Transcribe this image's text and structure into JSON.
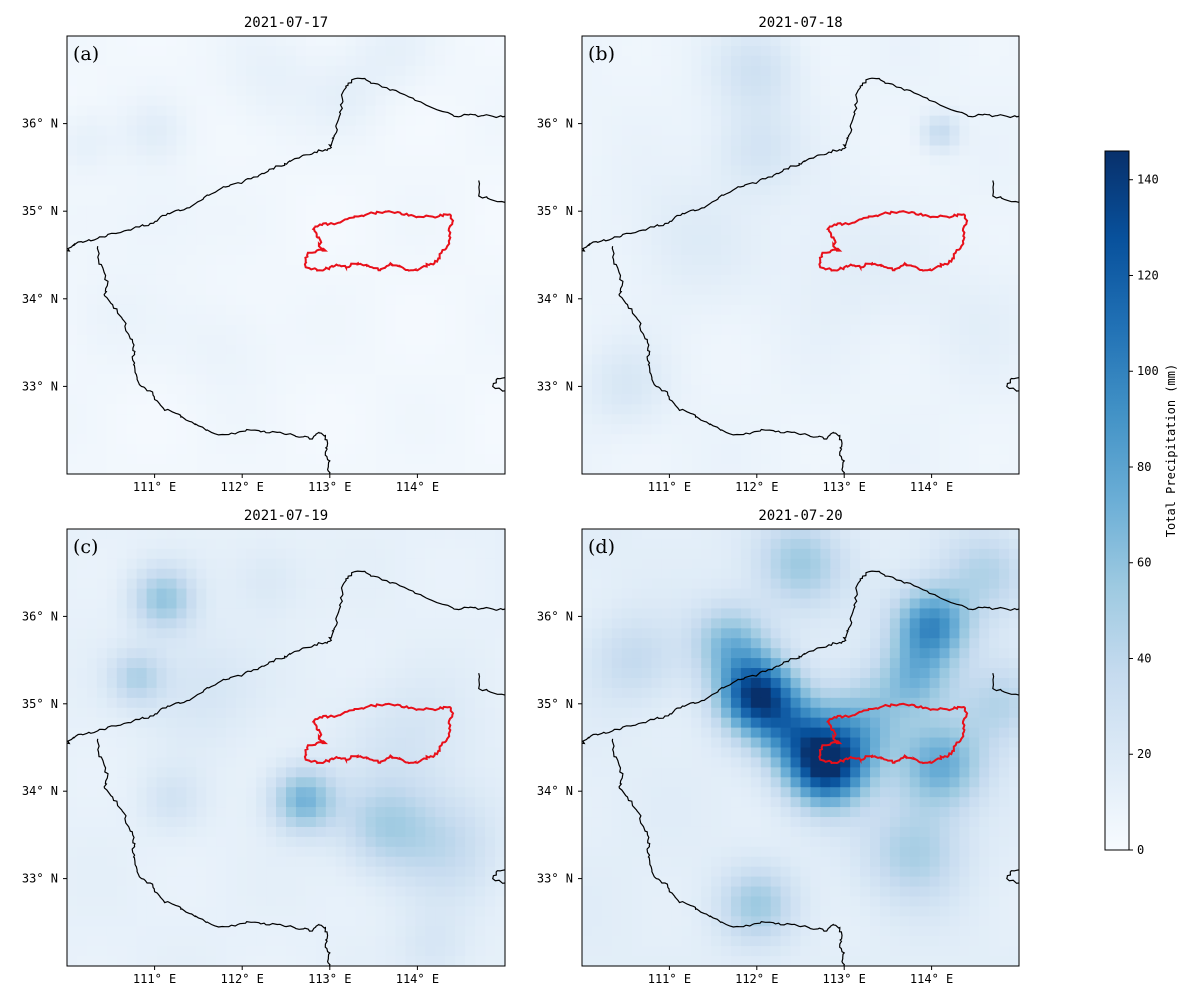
{
  "chart_data": {
    "type": "heatmap",
    "colormap": "Blues",
    "colorbar": {
      "label": "Total Precipitation (mm)",
      "range": [
        0,
        146
      ],
      "ticks": [
        "0",
        "20",
        "40",
        "60",
        "80",
        "100",
        "120",
        "140"
      ]
    },
    "x_range": [
      110.0,
      115.0
    ],
    "y_range": [
      32.0,
      37.0
    ],
    "x_ticks": [
      111,
      112,
      113,
      114
    ],
    "x_tick_labels": [
      "111° E",
      "112° E",
      "113° E",
      "114° E"
    ],
    "y_ticks": [
      33,
      34,
      35,
      36
    ],
    "y_tick_labels": [
      "33° N",
      "34° N",
      "35° N",
      "36° N"
    ],
    "province_border_color": "#000000",
    "study_area_color": "#e8101a",
    "panels": [
      {
        "letter": "(a)",
        "title": "2021-07-17",
        "background_mm": 4,
        "blobs": [
          {
            "lon": 111.0,
            "lat": 35.9,
            "peak_mm": 10,
            "sigma_deg": 0.25
          },
          {
            "lon": 110.2,
            "lat": 35.8,
            "peak_mm": 9,
            "sigma_deg": 0.25
          },
          {
            "lon": 112.3,
            "lat": 36.5,
            "peak_mm": 8,
            "sigma_deg": 0.4
          },
          {
            "lon": 113.2,
            "lat": 36.3,
            "peak_mm": 7,
            "sigma_deg": 0.3
          },
          {
            "lon": 111.0,
            "lat": 34.9,
            "peak_mm": 6,
            "sigma_deg": 0.4
          },
          {
            "lon": 111.8,
            "lat": 33.5,
            "peak_mm": 6,
            "sigma_deg": 0.4
          },
          {
            "lon": 113.7,
            "lat": 36.8,
            "peak_mm": 8,
            "sigma_deg": 0.35
          },
          {
            "lon": 110.4,
            "lat": 33.8,
            "peak_mm": 5,
            "sigma_deg": 0.4
          }
        ]
      },
      {
        "letter": "(b)",
        "title": "2021-07-18",
        "background_mm": 8,
        "blobs": [
          {
            "lon": 112.0,
            "lat": 36.6,
            "peak_mm": 20,
            "sigma_deg": 0.35
          },
          {
            "lon": 112.0,
            "lat": 35.7,
            "peak_mm": 18,
            "sigma_deg": 0.35
          },
          {
            "lon": 114.1,
            "lat": 35.9,
            "peak_mm": 28,
            "sigma_deg": 0.15
          },
          {
            "lon": 110.5,
            "lat": 33.0,
            "peak_mm": 14,
            "sigma_deg": 0.35
          },
          {
            "lon": 111.2,
            "lat": 34.7,
            "peak_mm": 10,
            "sigma_deg": 0.5
          },
          {
            "lon": 113.0,
            "lat": 34.4,
            "peak_mm": 8,
            "sigma_deg": 0.6
          },
          {
            "lon": 114.5,
            "lat": 33.8,
            "peak_mm": 6,
            "sigma_deg": 0.5
          }
        ]
      },
      {
        "letter": "(c)",
        "title": "2021-07-19",
        "background_mm": 12,
        "blobs": [
          {
            "lon": 111.1,
            "lat": 36.2,
            "peak_mm": 45,
            "sigma_deg": 0.25
          },
          {
            "lon": 110.8,
            "lat": 35.3,
            "peak_mm": 32,
            "sigma_deg": 0.22
          },
          {
            "lon": 112.7,
            "lat": 33.9,
            "peak_mm": 58,
            "sigma_deg": 0.26
          },
          {
            "lon": 113.6,
            "lat": 33.6,
            "peak_mm": 32,
            "sigma_deg": 0.35
          },
          {
            "lon": 114.3,
            "lat": 33.4,
            "peak_mm": 25,
            "sigma_deg": 0.45
          },
          {
            "lon": 111.5,
            "lat": 35.2,
            "peak_mm": 14,
            "sigma_deg": 0.45
          },
          {
            "lon": 113.9,
            "lat": 34.6,
            "peak_mm": 14,
            "sigma_deg": 0.5
          },
          {
            "lon": 111.2,
            "lat": 33.9,
            "peak_mm": 14,
            "sigma_deg": 0.25
          },
          {
            "lon": 112.3,
            "lat": 36.4,
            "peak_mm": 10,
            "sigma_deg": 0.3
          },
          {
            "lon": 114.2,
            "lat": 32.2,
            "peak_mm": 12,
            "sigma_deg": 0.3
          }
        ]
      },
      {
        "letter": "(d)",
        "title": "2021-07-20",
        "background_mm": 15,
        "blobs": [
          {
            "lon": 112.0,
            "lat": 35.1,
            "peak_mm": 120,
            "sigma_deg": 0.3
          },
          {
            "lon": 112.8,
            "lat": 34.3,
            "peak_mm": 130,
            "sigma_deg": 0.32
          },
          {
            "lon": 112.4,
            "lat": 34.7,
            "peak_mm": 55,
            "sigma_deg": 0.3
          },
          {
            "lon": 111.7,
            "lat": 35.7,
            "peak_mm": 50,
            "sigma_deg": 0.3
          },
          {
            "lon": 114.0,
            "lat": 35.9,
            "peak_mm": 80,
            "sigma_deg": 0.3
          },
          {
            "lon": 113.8,
            "lat": 35.3,
            "peak_mm": 45,
            "sigma_deg": 0.3
          },
          {
            "lon": 114.1,
            "lat": 34.3,
            "peak_mm": 60,
            "sigma_deg": 0.35
          },
          {
            "lon": 113.8,
            "lat": 33.3,
            "peak_mm": 35,
            "sigma_deg": 0.4
          },
          {
            "lon": 112.0,
            "lat": 32.7,
            "peak_mm": 38,
            "sigma_deg": 0.3
          },
          {
            "lon": 112.5,
            "lat": 36.6,
            "peak_mm": 40,
            "sigma_deg": 0.35
          },
          {
            "lon": 113.2,
            "lat": 34.8,
            "peak_mm": 45,
            "sigma_deg": 0.35
          },
          {
            "lon": 114.8,
            "lat": 35.0,
            "peak_mm": 30,
            "sigma_deg": 0.35
          },
          {
            "lon": 110.6,
            "lat": 35.5,
            "peak_mm": 22,
            "sigma_deg": 0.35
          },
          {
            "lon": 114.6,
            "lat": 36.5,
            "peak_mm": 30,
            "sigma_deg": 0.35
          }
        ]
      }
    ]
  }
}
